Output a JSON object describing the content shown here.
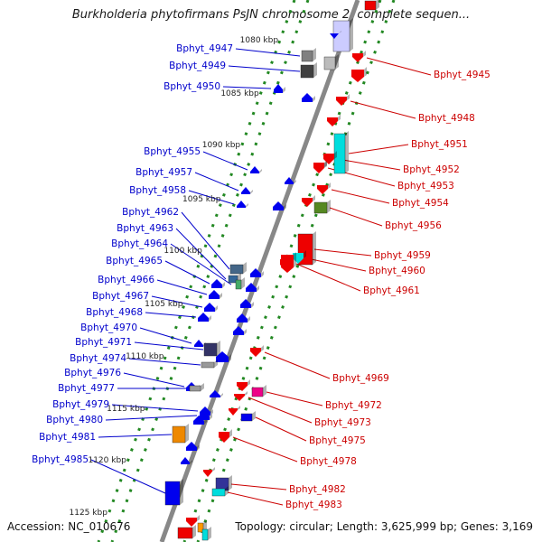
{
  "title": "Burkholderia phytofirmans PsJN chromosome 2, complete sequen...",
  "footer": {
    "accession": "Accession: NC_010676",
    "summary": "Topology: circular; Length: 3,625,999 bp; Genes: 3,169"
  },
  "colors": {
    "minus_label": "#0000cc",
    "plus_label": "#cc0000",
    "axis": "#888888",
    "tick_dots": "#228822"
  },
  "kbp_ticks": [
    {
      "kbp": 1080,
      "label": "1080 kbp"
    },
    {
      "kbp": 1085,
      "label": "1085 kbp"
    },
    {
      "kbp": 1090,
      "label": "1090 kbp"
    },
    {
      "kbp": 1095,
      "label": "1095 kbp"
    },
    {
      "kbp": 1100,
      "label": "1100 kbp"
    },
    {
      "kbp": 1105,
      "label": "1105 kbp"
    },
    {
      "kbp": 1110,
      "label": "1110 kbp"
    },
    {
      "kbp": 1115,
      "label": "1115 kbp"
    },
    {
      "kbp": 1120,
      "label": "1120 kbp"
    },
    {
      "kbp": 1125,
      "label": "1125 kbp"
    }
  ],
  "genes_minus": [
    {
      "name": "Bphyt_4947",
      "color": "#808080"
    },
    {
      "name": "Bphyt_4949",
      "color": "#404040"
    },
    {
      "name": "Bphyt_4950",
      "color": "#0000ee"
    },
    {
      "name": "Bphyt_4955",
      "color": "#0000ee"
    },
    {
      "name": "Bphyt_4957",
      "color": "#0000ee"
    },
    {
      "name": "Bphyt_4958",
      "color": "#0000ee"
    },
    {
      "name": "Bphyt_4962",
      "color": "#446688"
    },
    {
      "name": "Bphyt_4963",
      "color": "#336699"
    },
    {
      "name": "Bphyt_4964",
      "color": "#44aa66"
    },
    {
      "name": "Bphyt_4965",
      "color": "#0000ee"
    },
    {
      "name": "Bphyt_4966",
      "color": "#0000ee"
    },
    {
      "name": "Bphyt_4967",
      "color": "#0000ee"
    },
    {
      "name": "Bphyt_4968",
      "color": "#0000ee"
    },
    {
      "name": "Bphyt_4970",
      "color": "#0000ee"
    },
    {
      "name": "Bphyt_4971",
      "color": "#333366"
    },
    {
      "name": "Bphyt_4974",
      "color": "#999999"
    },
    {
      "name": "Bphyt_4976",
      "color": "#0000ee"
    },
    {
      "name": "Bphyt_4977",
      "color": "#999999"
    },
    {
      "name": "Bphyt_4979",
      "color": "#0000ee"
    },
    {
      "name": "Bphyt_4980",
      "color": "#0000ee"
    },
    {
      "name": "Bphyt_4981",
      "color": "#ee8800"
    },
    {
      "name": "Bphyt_4985",
      "color": "#0000ee"
    }
  ],
  "genes_plus": [
    {
      "name": "Bphyt_4945",
      "color": "#ee0000"
    },
    {
      "name": "Bphyt_4948",
      "color": "#ee0000"
    },
    {
      "name": "Bphyt_4951",
      "color": "#00dddd"
    },
    {
      "name": "Bphyt_4952",
      "color": "#ee0000"
    },
    {
      "name": "Bphyt_4953",
      "color": "#ee0000"
    },
    {
      "name": "Bphyt_4954",
      "color": "#ee0000"
    },
    {
      "name": "Bphyt_4956",
      "color": "#558822"
    },
    {
      "name": "Bphyt_4959",
      "color": "#ee0000"
    },
    {
      "name": "Bphyt_4960",
      "color": "#00dddd"
    },
    {
      "name": "Bphyt_4961",
      "color": "#ee0000"
    },
    {
      "name": "Bphyt_4969",
      "color": "#ee0000"
    },
    {
      "name": "Bphyt_4972",
      "color": "#ee0088"
    },
    {
      "name": "Bphyt_4973",
      "color": "#ee0000"
    },
    {
      "name": "Bphyt_4975",
      "color": "#0000ee"
    },
    {
      "name": "Bphyt_4978",
      "color": "#ee0000"
    },
    {
      "name": "Bphyt_4982",
      "color": "#333399"
    },
    {
      "name": "Bphyt_4983",
      "color": "#00dddd"
    }
  ]
}
